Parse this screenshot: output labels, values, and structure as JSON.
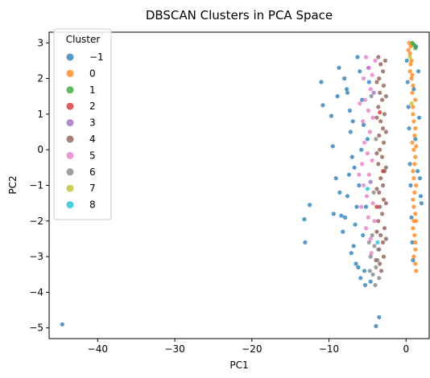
{
  "chart_data": {
    "type": "scatter",
    "title": "DBSCAN Clusters in PCA Space",
    "xlabel": "PC1",
    "ylabel": "PC2",
    "xlim": [
      -46.3,
      3.0
    ],
    "ylim": [
      -5.3,
      3.3
    ],
    "x_ticks": [
      -40,
      -30,
      -20,
      -10,
      0
    ],
    "y_ticks": [
      -5,
      -4,
      -3,
      -2,
      -1,
      0,
      1,
      2,
      3
    ],
    "x_tick_labels": [
      "−40",
      "−30",
      "−20",
      "−10",
      "0"
    ],
    "y_tick_labels": [
      "−5",
      "−4",
      "−3",
      "−2",
      "−1",
      "0",
      "1",
      "2",
      "3"
    ],
    "grid": false,
    "legend": {
      "title": "Cluster",
      "placement": "top-left",
      "entries": [
        "−1",
        "0",
        "1",
        "2",
        "3",
        "4",
        "5",
        "6",
        "7",
        "8"
      ]
    },
    "series": [
      {
        "name": "−1",
        "color": "#1f77b4",
        "points": [
          [
            -44.6,
            -4.9
          ],
          [
            -13.2,
            -1.95
          ],
          [
            -12.5,
            -1.55
          ],
          [
            -13.1,
            -2.6
          ],
          [
            -3.5,
            -4.7
          ],
          [
            -3.9,
            -4.95
          ],
          [
            -11.0,
            1.9
          ],
          [
            -10.8,
            1.25
          ],
          [
            -9.7,
            0.95
          ],
          [
            -9.5,
            0.1
          ],
          [
            -9.1,
            -0.8
          ],
          [
            -8.6,
            -1.2
          ],
          [
            -8.7,
            2.3
          ],
          [
            -8.0,
            2.0
          ],
          [
            -7.6,
            1.6
          ],
          [
            -7.3,
            1.1
          ],
          [
            -7.2,
            0.5
          ],
          [
            -7.0,
            -0.2
          ],
          [
            -7.4,
            -0.7
          ],
          [
            -7.6,
            -1.3
          ],
          [
            -7.9,
            -1.9
          ],
          [
            -8.2,
            -2.3
          ],
          [
            -6.8,
            -2.7
          ],
          [
            -6.5,
            -3.2
          ],
          [
            -5.9,
            -3.6
          ],
          [
            -5.3,
            -3.8
          ],
          [
            -6.3,
            2.6
          ],
          [
            -6.0,
            2.2
          ],
          [
            -5.7,
            1.4
          ],
          [
            -5.5,
            0.7
          ],
          [
            -5.8,
            0.0
          ],
          [
            -6.1,
            -1.0
          ],
          [
            -6.4,
            -1.6
          ],
          [
            -6.6,
            -2.1
          ],
          [
            -9.4,
            -1.8
          ],
          [
            -8.4,
            -1.85
          ],
          [
            -7.1,
            -2.9
          ],
          [
            -6.2,
            -3.3
          ],
          [
            -5.6,
            -2.4
          ],
          [
            -5.2,
            -1.6
          ],
          [
            -5.0,
            0.3
          ],
          [
            -4.8,
            1.9
          ],
          [
            -6.9,
            0.8
          ],
          [
            -7.7,
            1.7
          ],
          [
            -8.9,
            1.5
          ],
          [
            -6.7,
            -0.5
          ],
          [
            -5.4,
            -3.4
          ],
          [
            -4.6,
            -3.7
          ],
          [
            0.1,
            2.5
          ],
          [
            0.2,
            1.9
          ],
          [
            0.3,
            1.2
          ],
          [
            0.4,
            0.6
          ],
          [
            0.5,
            -0.4
          ],
          [
            0.6,
            -1.0
          ],
          [
            0.7,
            -1.9
          ],
          [
            0.8,
            -2.6
          ],
          [
            1.0,
            1.7
          ],
          [
            1.2,
            0.3
          ],
          [
            1.5,
            -0.6
          ],
          [
            1.8,
            -0.8
          ],
          [
            1.9,
            -1.3
          ],
          [
            2.0,
            -1.5
          ],
          [
            1.6,
            2.2
          ],
          [
            1.3,
            2.9
          ],
          [
            0.9,
            -3.1
          ],
          [
            1.7,
            0.9
          ]
        ]
      },
      {
        "name": "0",
        "color": "#ff7f0e",
        "points": [
          [
            0.4,
            3.0
          ],
          [
            0.5,
            2.7
          ],
          [
            0.6,
            2.4
          ],
          [
            0.7,
            2.0
          ],
          [
            0.8,
            1.6
          ],
          [
            0.9,
            1.2
          ],
          [
            1.0,
            0.8
          ],
          [
            1.1,
            0.4
          ],
          [
            1.0,
            0.0
          ],
          [
            1.1,
            -0.4
          ],
          [
            1.0,
            -0.8
          ],
          [
            1.1,
            -1.2
          ],
          [
            1.0,
            -1.6
          ],
          [
            1.0,
            -2.0
          ],
          [
            1.1,
            -2.4
          ],
          [
            1.2,
            -2.8
          ],
          [
            1.2,
            -3.2
          ],
          [
            1.3,
            -3.4
          ],
          [
            0.6,
            2.9
          ],
          [
            0.7,
            2.5
          ],
          [
            0.8,
            2.1
          ],
          [
            0.9,
            1.8
          ],
          [
            1.2,
            1.4
          ],
          [
            0.9,
            1.0
          ],
          [
            1.2,
            0.6
          ],
          [
            0.8,
            0.2
          ],
          [
            1.2,
            -0.2
          ],
          [
            0.9,
            -0.6
          ],
          [
            1.3,
            -1.0
          ],
          [
            0.9,
            -1.4
          ],
          [
            1.2,
            -1.8
          ],
          [
            0.9,
            -2.2
          ],
          [
            1.2,
            -2.6
          ],
          [
            1.0,
            -3.0
          ],
          [
            0.3,
            2.8
          ],
          [
            0.5,
            2.2
          ],
          [
            1.3,
            0.1
          ],
          [
            1.3,
            -2.0
          ]
        ]
      },
      {
        "name": "1",
        "color": "#2ca02c",
        "points": [
          [
            1.0,
            2.95
          ],
          [
            1.2,
            2.85
          ],
          [
            0.8,
            3.0
          ]
        ]
      },
      {
        "name": "2",
        "color": "#d62728",
        "points": [
          [
            -3.4,
            1.05
          ],
          [
            -3.0,
            -0.6
          ],
          [
            -3.8,
            -1.6
          ]
        ]
      },
      {
        "name": "3",
        "color": "#9467bd",
        "points": [
          [
            -4.9,
            2.3
          ],
          [
            -4.6,
            -0.9
          ],
          [
            -4.2,
            1.6
          ]
        ]
      },
      {
        "name": "4",
        "color": "#8c564b",
        "points": [
          [
            -3.6,
            2.6
          ],
          [
            -3.3,
            2.4
          ],
          [
            -3.0,
            2.2
          ],
          [
            -3.5,
            2.0
          ],
          [
            -2.9,
            1.8
          ],
          [
            -3.4,
            1.6
          ],
          [
            -3.1,
            1.4
          ],
          [
            -3.6,
            1.2
          ],
          [
            -2.8,
            1.0
          ],
          [
            -3.3,
            0.8
          ],
          [
            -3.0,
            0.6
          ],
          [
            -3.5,
            0.4
          ],
          [
            -2.9,
            0.2
          ],
          [
            -3.4,
            0.0
          ],
          [
            -3.1,
            -0.2
          ],
          [
            -3.6,
            -0.4
          ],
          [
            -2.8,
            -0.6
          ],
          [
            -3.3,
            -0.8
          ],
          [
            -3.0,
            -1.0
          ],
          [
            -3.5,
            -1.2
          ],
          [
            -2.9,
            -1.4
          ],
          [
            -3.4,
            -1.6
          ],
          [
            -3.1,
            -1.8
          ],
          [
            -3.6,
            -2.0
          ],
          [
            -2.8,
            -2.2
          ],
          [
            -3.3,
            -2.4
          ],
          [
            -3.0,
            -2.6
          ],
          [
            -3.5,
            -2.8
          ],
          [
            -2.9,
            -3.0
          ],
          [
            -3.4,
            -3.2
          ],
          [
            -3.2,
            -3.4
          ],
          [
            -2.7,
            2.5
          ],
          [
            -2.6,
            1.5
          ],
          [
            -2.6,
            0.5
          ],
          [
            -2.6,
            -0.5
          ],
          [
            -2.6,
            -1.5
          ],
          [
            -2.6,
            -2.5
          ],
          [
            -3.8,
            1.9
          ],
          [
            -3.8,
            0.9
          ],
          [
            -3.8,
            -0.1
          ],
          [
            -3.8,
            -1.1
          ],
          [
            -3.8,
            -2.3
          ],
          [
            -3.9,
            -3.1
          ]
        ]
      },
      {
        "name": "5",
        "color": "#e377c2",
        "points": [
          [
            -5.2,
            2.6
          ],
          [
            -4.8,
            2.3
          ],
          [
            -5.5,
            2.0
          ],
          [
            -4.6,
            1.7
          ],
          [
            -5.3,
            1.4
          ],
          [
            -4.9,
            1.1
          ],
          [
            -5.6,
            0.8
          ],
          [
            -4.7,
            0.5
          ],
          [
            -5.4,
            0.2
          ],
          [
            -5.0,
            -0.1
          ],
          [
            -5.7,
            -0.4
          ],
          [
            -4.8,
            -0.7
          ],
          [
            -5.5,
            -1.0
          ],
          [
            -5.1,
            -1.3
          ],
          [
            -5.8,
            -1.6
          ],
          [
            -4.9,
            -1.9
          ],
          [
            -5.2,
            -2.2
          ],
          [
            -4.6,
            -2.5
          ],
          [
            -4.4,
            2.1
          ],
          [
            -4.3,
            0.9
          ],
          [
            -4.4,
            -0.3
          ],
          [
            -4.3,
            -1.5
          ],
          [
            -6.0,
            1.3
          ],
          [
            -6.1,
            -0.7
          ],
          [
            -4.5,
            -2.9
          ],
          [
            -4.0,
            2.5
          ],
          [
            -4.1,
            -2.0
          ]
        ]
      },
      {
        "name": "6",
        "color": "#7f7f7f",
        "points": [
          [
            -4.4,
            -2.4
          ],
          [
            -4.1,
            -2.7
          ],
          [
            -4.6,
            -3.0
          ],
          [
            -3.9,
            -3.3
          ],
          [
            -4.3,
            -3.5
          ],
          [
            -3.7,
            -3.1
          ],
          [
            -4.0,
            -3.8
          ],
          [
            -4.8,
            -2.6
          ],
          [
            -3.6,
            -2.8
          ],
          [
            -4.2,
            -1.2
          ],
          [
            -3.9,
            0.3
          ],
          [
            -4.5,
            1.5
          ],
          [
            -4.7,
            -3.4
          ],
          [
            -3.5,
            -3.6
          ]
        ]
      },
      {
        "name": "7",
        "color": "#bcbd22",
        "points": [
          [
            0.5,
            2.6
          ],
          [
            0.7,
            1.3
          ]
        ]
      },
      {
        "name": "8",
        "color": "#17becf",
        "points": [
          [
            -5.0,
            -1.1
          ],
          [
            -3.7,
            -2.6
          ]
        ]
      }
    ]
  }
}
